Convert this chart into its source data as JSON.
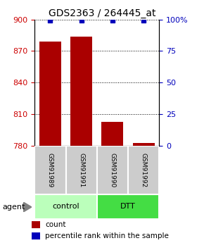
{
  "title": "GDS2363 / 264445_at",
  "samples": [
    "GSM91989",
    "GSM91991",
    "GSM91990",
    "GSM91992"
  ],
  "counts": [
    879,
    884,
    803,
    783
  ],
  "percentiles": [
    99,
    99,
    99,
    99
  ],
  "ylim_left": [
    780,
    900
  ],
  "ylim_right": [
    0,
    100
  ],
  "yticks_left": [
    780,
    810,
    840,
    870,
    900
  ],
  "yticks_right": [
    0,
    25,
    50,
    75,
    100
  ],
  "group_spans": [
    {
      "start": 0,
      "end": 1,
      "label": "control",
      "color": "#bbffbb"
    },
    {
      "start": 2,
      "end": 3,
      "label": "DTT",
      "color": "#44dd44"
    }
  ],
  "bar_color": "#aa0000",
  "dot_color": "#0000bb",
  "bar_width": 0.7,
  "tick_label_color_left": "#cc0000",
  "tick_label_color_right": "#0000bb",
  "title_fontsize": 10,
  "tick_fontsize": 8,
  "legend_fontsize": 7.5,
  "sample_gray": "#cccccc"
}
